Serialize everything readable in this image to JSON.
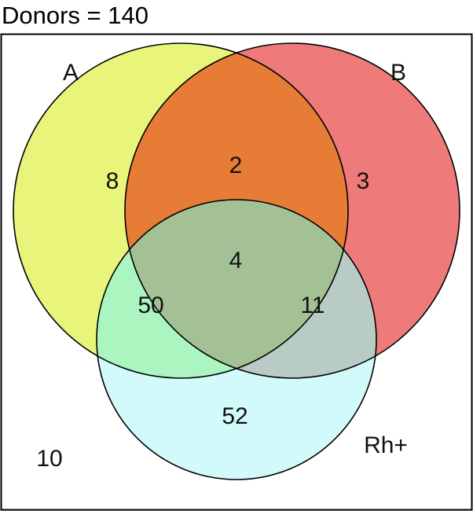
{
  "title": "Donors = 140",
  "sets": {
    "a": {
      "label": "A",
      "color": "#e9f57a"
    },
    "b": {
      "label": "B",
      "color": "#ee7b79"
    },
    "rh": {
      "label": "Rh+",
      "color": "#d3fafa"
    }
  },
  "regions": {
    "a_only": {
      "value": "8"
    },
    "b_only": {
      "value": "3"
    },
    "a_b": {
      "value": "2",
      "color": "#e67c36"
    },
    "a_b_rh": {
      "value": "4",
      "color": "#a4c196"
    },
    "a_rh": {
      "value": "50",
      "color": "#abf5c0"
    },
    "b_rh": {
      "value": "11",
      "color": "#b8cbc5"
    },
    "rh_only": {
      "value": "52"
    },
    "none": {
      "value": "10"
    }
  }
}
